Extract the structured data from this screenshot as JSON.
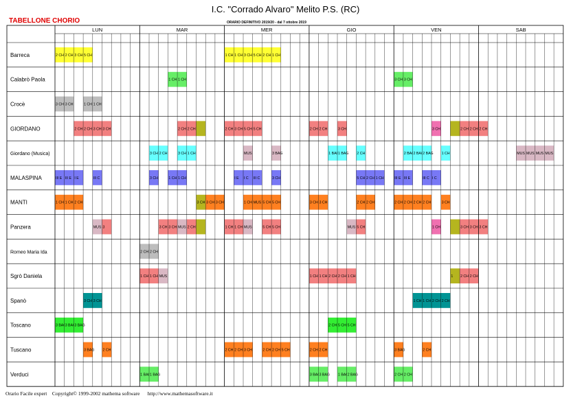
{
  "header": {
    "school": "I.C. \"Corrado Alvaro\" Melito P.S. (RC)",
    "label": "TABELLONE CHORIO",
    "orario": "ORARIO DEFINITIVO 2019/20 - dal 7 ottobre 2019"
  },
  "days": [
    "LUN",
    "MAR",
    "MER",
    "GIO",
    "VEN",
    "SAB"
  ],
  "colors": {
    "yellow": "#ffff33",
    "green": "#66ee66",
    "gray": "#bdbdbd",
    "salmon": "#f28080",
    "olive": "#b5b51f",
    "cyan": "#66ffff",
    "mauve": "#d9b8c4",
    "blue": "#7878f5",
    "orange": "#ff8020",
    "pink": "#f070b0",
    "teal": "#009494",
    "brightgreen": "#33ee33"
  },
  "rows": [
    {
      "teacher": "Barreca",
      "cells": [
        [
          0,
          "yellow",
          "2 CH"
        ],
        [
          1,
          "yellow",
          "2 CH"
        ],
        [
          2,
          "yellow",
          "3 CH"
        ],
        [
          3,
          "yellow",
          "5 CH"
        ],
        [
          18,
          "yellow",
          "1 CH"
        ],
        [
          19,
          "yellow",
          "1 CH"
        ],
        [
          20,
          "yellow",
          "3 CH"
        ],
        [
          21,
          "yellow",
          "5 CH"
        ],
        [
          22,
          "yellow",
          "2 CH"
        ],
        [
          23,
          "yellow",
          "1 CH"
        ]
      ]
    },
    {
      "teacher": "Calabrò Paola",
      "cells": [
        [
          12,
          "green",
          "1 CH"
        ],
        [
          13,
          "green",
          "1 CH"
        ],
        [
          36,
          "green",
          "3 CH"
        ],
        [
          37,
          "green",
          "3 CH"
        ]
      ]
    },
    {
      "teacher": "Crocè",
      "cells": [
        [
          0,
          "gray",
          "3 CH"
        ],
        [
          1,
          "gray",
          "3 CH"
        ],
        [
          3,
          "gray",
          "1 CH"
        ],
        [
          4,
          "gray",
          "1 CH"
        ]
      ]
    },
    {
      "teacher": "GIORDANO",
      "cells": [
        [
          2,
          "salmon",
          "2 CH"
        ],
        [
          3,
          "salmon",
          "2 CH"
        ],
        [
          4,
          "salmon",
          "3 CH"
        ],
        [
          5,
          "salmon",
          "3 CH"
        ],
        [
          13,
          "salmon",
          "2 CH"
        ],
        [
          14,
          "salmon",
          "2 CH"
        ],
        [
          15,
          "olive",
          ""
        ],
        [
          18,
          "salmon",
          "2 CH"
        ],
        [
          19,
          "salmon",
          "3 CH"
        ],
        [
          20,
          "salmon",
          "5 CH"
        ],
        [
          21,
          "salmon",
          "5 CH"
        ],
        [
          27,
          "salmon",
          "2 CH"
        ],
        [
          28,
          "salmon",
          "2 CH"
        ],
        [
          30,
          "salmon",
          "3 CH"
        ],
        [
          40,
          "pink",
          "3 CH"
        ],
        [
          42,
          "olive",
          ""
        ],
        [
          43,
          "salmon",
          "2 CH"
        ],
        [
          44,
          "salmon",
          "2 CH"
        ],
        [
          45,
          "salmon",
          "2 CH"
        ]
      ]
    },
    {
      "teacher": "Giordano (Musica)",
      "cells": [
        [
          10,
          "cyan",
          "3 CH"
        ],
        [
          11,
          "cyan",
          "2 CH"
        ],
        [
          13,
          "cyan",
          "3 CH"
        ],
        [
          14,
          "cyan",
          "1 CH"
        ],
        [
          20,
          "mauve",
          "MUS"
        ],
        [
          23,
          "mauve",
          "3 BAG"
        ],
        [
          29,
          "cyan",
          "1 BAG"
        ],
        [
          30,
          "cyan",
          "1 BAG"
        ],
        [
          32,
          "cyan",
          "2 CH"
        ],
        [
          37,
          "cyan",
          "2 BAG"
        ],
        [
          38,
          "cyan",
          "2 BAG"
        ],
        [
          39,
          "cyan",
          "2 BAG"
        ],
        [
          41,
          "cyan",
          "1 CH"
        ],
        [
          49,
          "mauve",
          "MUS"
        ],
        [
          50,
          "mauve",
          "MUS"
        ],
        [
          51,
          "mauve",
          "MUS"
        ],
        [
          52,
          "mauve",
          "MUS"
        ]
      ]
    },
    {
      "teacher": "MALASPINA",
      "cells": [
        [
          0,
          "blue",
          "III E"
        ],
        [
          1,
          "blue",
          "III E"
        ],
        [
          2,
          "blue",
          "I E"
        ],
        [
          4,
          "blue",
          "III C"
        ],
        [
          10,
          "blue",
          "3 CH"
        ],
        [
          12,
          "blue",
          "1 CH"
        ],
        [
          13,
          "blue",
          "1 CH"
        ],
        [
          19,
          "blue",
          "I E"
        ],
        [
          20,
          "blue",
          "I C"
        ],
        [
          21,
          "blue",
          "III C"
        ],
        [
          23,
          "blue",
          "3 CH"
        ],
        [
          32,
          "blue",
          "5 CH"
        ],
        [
          33,
          "blue",
          "2 CH"
        ],
        [
          34,
          "blue",
          "1 CH"
        ],
        [
          36,
          "blue",
          "III E"
        ],
        [
          37,
          "blue",
          "III E"
        ],
        [
          39,
          "blue",
          "III C"
        ],
        [
          40,
          "blue",
          "I C"
        ]
      ]
    },
    {
      "teacher": "MANTI",
      "cells": [
        [
          0,
          "orange",
          "1 CH"
        ],
        [
          1,
          "orange",
          "1 CH"
        ],
        [
          2,
          "orange",
          "2 CH"
        ],
        [
          15,
          "olive",
          "3 CH"
        ],
        [
          16,
          "orange",
          "3 CH"
        ],
        [
          17,
          "orange",
          "3 CH"
        ],
        [
          20,
          "orange",
          "1 CH"
        ],
        [
          21,
          "orange",
          "MUS"
        ],
        [
          22,
          "orange",
          "5 CH"
        ],
        [
          23,
          "orange",
          "5 CH"
        ],
        [
          27,
          "orange",
          "3 CH"
        ],
        [
          28,
          "orange",
          "3 CH"
        ],
        [
          32,
          "orange",
          "2 CH"
        ],
        [
          33,
          "orange",
          "2 CH"
        ],
        [
          36,
          "orange",
          "2 CH"
        ],
        [
          37,
          "orange",
          "2 CH"
        ],
        [
          38,
          "orange",
          "2 CH"
        ],
        [
          39,
          "orange",
          "2 CH"
        ],
        [
          41,
          "orange",
          "3 CH"
        ]
      ]
    },
    {
      "teacher": "Panzera",
      "cells": [
        [
          4,
          "mauve",
          "MUS"
        ],
        [
          5,
          "salmon",
          "3"
        ],
        [
          11,
          "salmon",
          "3 CH"
        ],
        [
          12,
          "salmon",
          "3 CH"
        ],
        [
          13,
          "mauve",
          "MUS"
        ],
        [
          14,
          "salmon",
          "2 CH"
        ],
        [
          15,
          "olive",
          ""
        ],
        [
          18,
          "salmon",
          "1 CH"
        ],
        [
          19,
          "salmon",
          "1 CH"
        ],
        [
          20,
          "mauve",
          "MUS"
        ],
        [
          22,
          "salmon",
          "5 CH"
        ],
        [
          23,
          "salmon",
          "5 CH"
        ],
        [
          31,
          "mauve",
          "MUS"
        ],
        [
          32,
          "salmon",
          "5 CH"
        ],
        [
          40,
          "pink",
          "1 CH"
        ],
        [
          42,
          "olive",
          ""
        ],
        [
          43,
          "salmon",
          "3 CH"
        ],
        [
          44,
          "salmon",
          "3 CH"
        ],
        [
          45,
          "salmon",
          "3 CH"
        ]
      ]
    },
    {
      "teacher": "Romeo Maria Ida",
      "cells": [
        [
          9,
          "gray",
          "2 CH"
        ],
        [
          10,
          "gray",
          "2 CH"
        ]
      ]
    },
    {
      "teacher": "Sgrò Daniela",
      "cells": [
        [
          9,
          "salmon",
          "1 CH"
        ],
        [
          10,
          "salmon",
          "1 CH"
        ],
        [
          11,
          "mauve",
          "MUS"
        ],
        [
          27,
          "salmon",
          "1 CH"
        ],
        [
          28,
          "salmon",
          "1 CH"
        ],
        [
          29,
          "salmon",
          "2 CH"
        ],
        [
          30,
          "salmon",
          "2 CH"
        ],
        [
          31,
          "salmon",
          "1 CH"
        ],
        [
          42,
          "olive",
          "1"
        ],
        [
          43,
          "salmon",
          "2 CH"
        ],
        [
          44,
          "salmon",
          "2 CH"
        ]
      ]
    },
    {
      "teacher": "Spanò",
      "cells": [
        [
          3,
          "teal",
          "3 CH"
        ],
        [
          4,
          "teal",
          "3 CH"
        ],
        [
          38,
          "teal",
          "1 CH"
        ],
        [
          39,
          "teal",
          "1 CH"
        ],
        [
          40,
          "teal",
          "2 CH"
        ],
        [
          41,
          "teal",
          "2 CH"
        ]
      ]
    },
    {
      "teacher": "Toscano",
      "cells": [
        [
          0,
          "brightgreen",
          "3 BAG"
        ],
        [
          1,
          "brightgreen",
          "3 BAG"
        ],
        [
          2,
          "brightgreen",
          "3 BAG"
        ],
        [
          29,
          "brightgreen",
          "2 CH"
        ],
        [
          30,
          "brightgreen",
          "5 CH"
        ],
        [
          31,
          "brightgreen",
          "5 CH"
        ]
      ]
    },
    {
      "teacher": "Tuscano",
      "cells": [
        [
          3,
          "orange",
          "3 BAG"
        ],
        [
          5,
          "orange",
          "2 CH"
        ],
        [
          18,
          "orange",
          "2 CH"
        ],
        [
          19,
          "orange",
          "2 CH"
        ],
        [
          20,
          "orange",
          "3 CH"
        ],
        [
          22,
          "orange",
          "2 CH"
        ],
        [
          23,
          "orange",
          "2 CH"
        ],
        [
          24,
          "orange",
          "5 CH"
        ],
        [
          27,
          "orange",
          "2 CH"
        ],
        [
          28,
          "orange",
          "2 CH"
        ],
        [
          36,
          "orange",
          "3 BAG"
        ],
        [
          39,
          "orange",
          "2 CH"
        ]
      ]
    },
    {
      "teacher": "Verduci",
      "cells": [
        [
          9,
          "green",
          "1 BAG"
        ],
        [
          10,
          "green",
          "1 BAG"
        ],
        [
          27,
          "green",
          "3 BAG"
        ],
        [
          28,
          "green",
          "3 BAG"
        ],
        [
          30,
          "green",
          "1 BAG"
        ],
        [
          31,
          "green",
          "2 BAG"
        ],
        [
          36,
          "green",
          "2 CH"
        ],
        [
          37,
          "green",
          "2 CH"
        ]
      ]
    }
  ],
  "footer": "Orario Facile expert    Copyright© 1999-2002 mathema software      http://www.mathemasoftware.it"
}
